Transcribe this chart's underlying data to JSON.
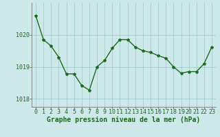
{
  "x": [
    0,
    1,
    2,
    3,
    4,
    5,
    6,
    7,
    8,
    9,
    10,
    11,
    12,
    13,
    14,
    15,
    16,
    17,
    18,
    19,
    20,
    21,
    22,
    23
  ],
  "y": [
    1020.6,
    1019.85,
    1019.65,
    1019.3,
    1018.78,
    1018.78,
    1018.42,
    1018.27,
    1019.0,
    1019.2,
    1019.58,
    1019.85,
    1019.85,
    1019.62,
    1019.5,
    1019.45,
    1019.35,
    1019.27,
    1019.0,
    1018.8,
    1018.85,
    1018.85,
    1019.1,
    1019.62
  ],
  "ylim": [
    1017.75,
    1021.0
  ],
  "yticks": [
    1018,
    1019,
    1020
  ],
  "xticks": [
    0,
    1,
    2,
    3,
    4,
    5,
    6,
    7,
    8,
    9,
    10,
    11,
    12,
    13,
    14,
    15,
    16,
    17,
    18,
    19,
    20,
    21,
    22,
    23
  ],
  "line_color": "#1a6b1a",
  "marker": "*",
  "marker_size": 3,
  "background_color": "#cce8e8",
  "grid_color": "#a0cccc",
  "xlabel": "Graphe pression niveau de la mer (hPa)",
  "xlabel_fontsize": 7,
  "tick_fontsize": 6,
  "line_width": 1.0
}
